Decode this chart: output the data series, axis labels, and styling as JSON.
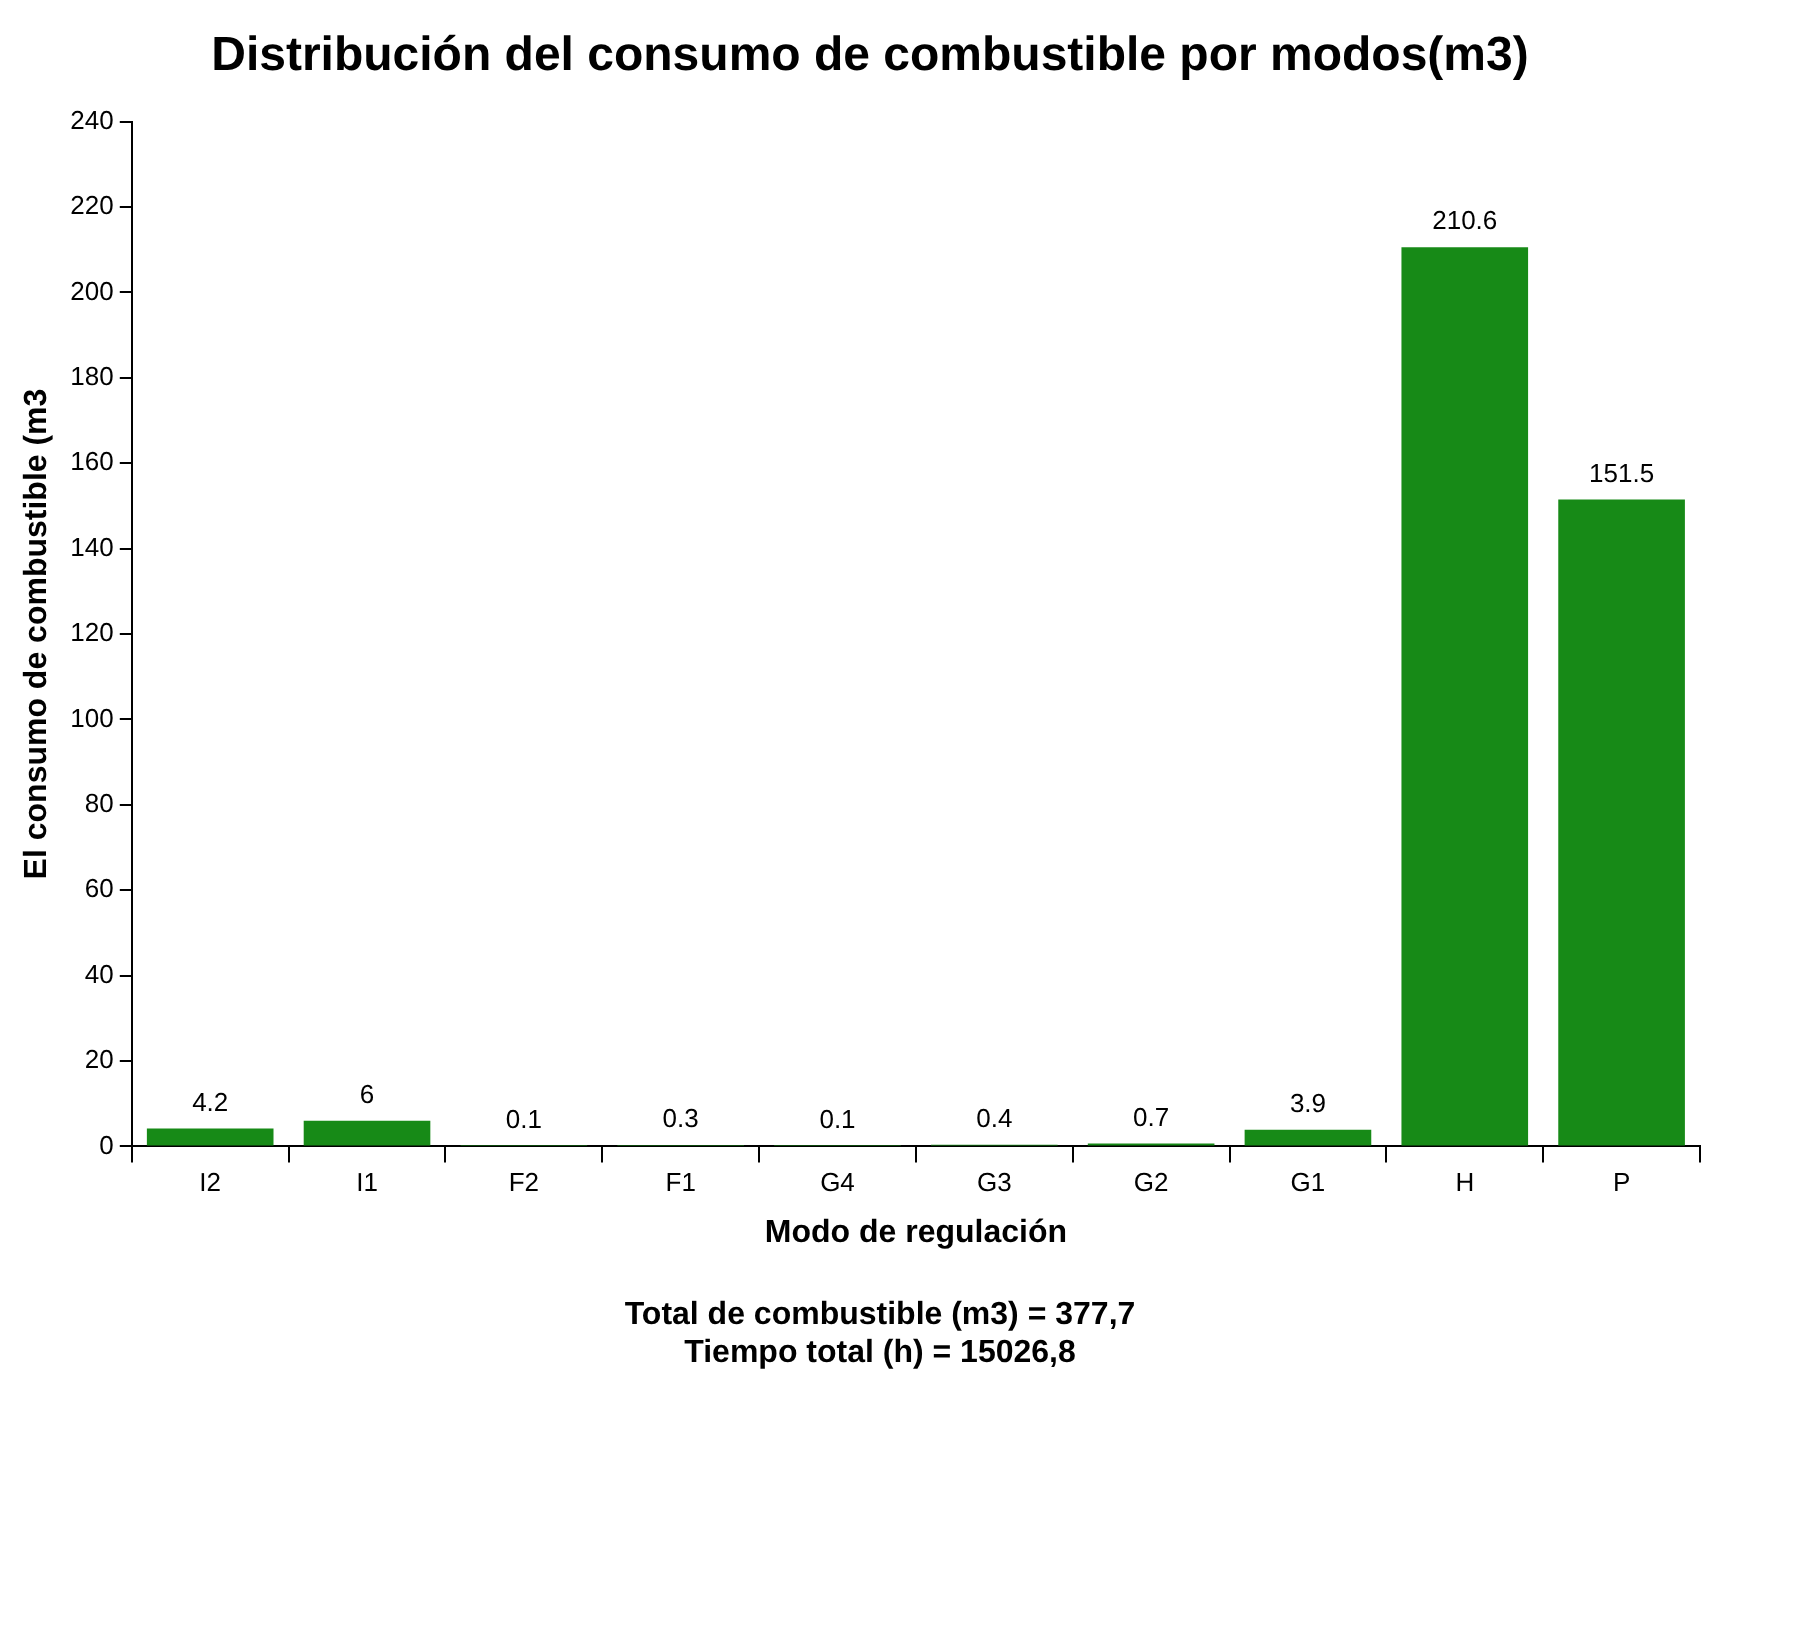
{
  "chart_data": {
    "type": "bar",
    "title": "Distribución del consumo de combustible por modos(m3)",
    "xlabel": "Modo de regulación",
    "ylabel": "El consumo de combustible (m3",
    "categories": [
      "I2",
      "I1",
      "F2",
      "F1",
      "G4",
      "G3",
      "G2",
      "G1",
      "H",
      "P"
    ],
    "values": [
      4.2,
      6,
      0.1,
      0.3,
      0.1,
      0.4,
      0.7,
      3.9,
      210.6,
      151.5
    ],
    "color": "#178a17",
    "ylim": [
      0,
      240
    ],
    "yticks": [
      0,
      20,
      40,
      60,
      80,
      100,
      120,
      140,
      160,
      180,
      200,
      220,
      240
    ],
    "grid": false,
    "data_labels": true,
    "annotations": [
      "Total de combustible (m3) = 377,7",
      "Tiempo total (h) = 15026,8"
    ]
  }
}
